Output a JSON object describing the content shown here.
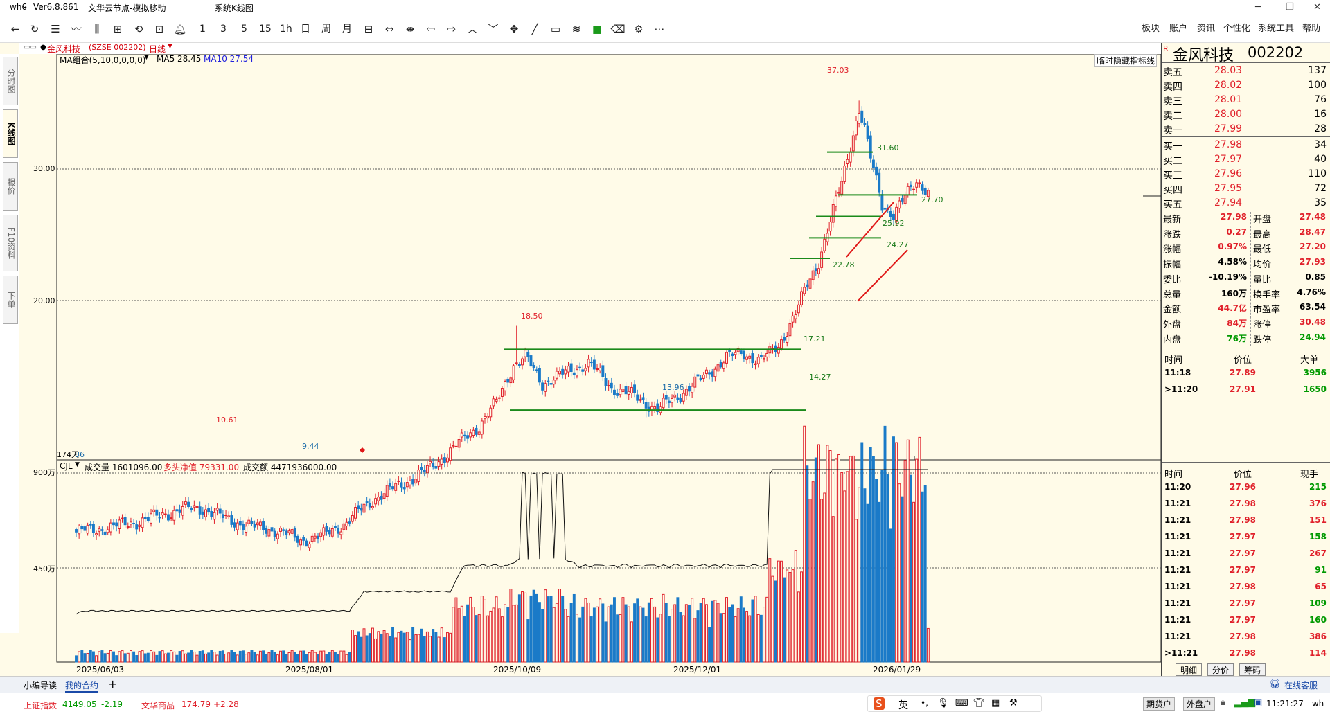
{
  "titlebar": {
    "app": "wh6",
    "version": "Ver6.8.861",
    "server": "文华云节点-模拟移动",
    "window": "系统K线图"
  },
  "toolbar": {
    "periods": [
      "1",
      "3",
      "5",
      "15",
      "1h",
      "日",
      "周",
      "月"
    ],
    "menu": [
      "板块",
      "账户",
      "资讯",
      "个性化",
      "系统工具",
      "帮助"
    ]
  },
  "subheader": {
    "symbol": "金风科技",
    "code_label": "(SZSE 002202)",
    "period": "日线"
  },
  "left_tabs": [
    "分时图",
    "K线图",
    "报价",
    "F10资料",
    "下单"
  ],
  "main_chart": {
    "indicator": "MA组合(5,10,0,0,0,0)",
    "ma5_label": "MA5 28.45",
    "ma10_label": "MA10 27.54",
    "hide_btn": "临时隐藏指标线",
    "price_labels": [
      "30.00",
      "20.00"
    ],
    "annotations": {
      "high": "37.03",
      "l3160": "31.60",
      "l2770": "27.70",
      "l2592": "25.92",
      "l2427": "24.27",
      "l2278": "22.78",
      "h1850": "18.50",
      "l1721": "17.21",
      "l1427": "14.27",
      "low1396": "13.96",
      "h1061": "10.61",
      "low944": "9.44",
      "corner": "174天",
      "corner2": "86"
    }
  },
  "volume_chart": {
    "indicator": "CJL",
    "vol_label": "成交量 1601096.00",
    "net_label": "多头净值 79331.00",
    "amount_label": "成交额 4471936000.00",
    "y_labels": [
      "900万",
      "450万"
    ]
  },
  "x_axis": [
    "2025/06/03",
    "2025/08/01",
    "2025/10/09",
    "2025/12/01",
    "2026/01/29"
  ],
  "quote": {
    "title_flag": "R",
    "name": "金风科技",
    "code": "002202",
    "asks": [
      {
        "label": "卖五",
        "price": "28.03",
        "vol": "137"
      },
      {
        "label": "卖四",
        "price": "28.02",
        "vol": "100"
      },
      {
        "label": "卖三",
        "price": "28.01",
        "vol": "76"
      },
      {
        "label": "卖二",
        "price": "28.00",
        "vol": "16"
      },
      {
        "label": "卖一",
        "price": "27.99",
        "vol": "28"
      }
    ],
    "bids": [
      {
        "label": "买一",
        "price": "27.98",
        "vol": "34"
      },
      {
        "label": "买二",
        "price": "27.97",
        "vol": "40"
      },
      {
        "label": "买三",
        "price": "27.96",
        "vol": "110"
      },
      {
        "label": "买四",
        "price": "27.95",
        "vol": "72"
      },
      {
        "label": "买五",
        "price": "27.94",
        "vol": "35"
      }
    ],
    "stats_left": [
      {
        "label": "最新",
        "value": "27.98",
        "color": "red"
      },
      {
        "label": "涨跌",
        "value": "0.27",
        "color": "red"
      },
      {
        "label": "涨幅",
        "value": "0.97%",
        "color": "red"
      },
      {
        "label": "振幅",
        "value": "4.58%",
        "color": "black"
      },
      {
        "label": "委比",
        "value": "-10.19%",
        "color": "black"
      },
      {
        "label": "总量",
        "value": "160万",
        "color": "black"
      },
      {
        "label": "金额",
        "value": "44.7亿",
        "color": "red"
      },
      {
        "label": "外盘",
        "value": "84万",
        "color": "red"
      },
      {
        "label": "内盘",
        "value": "76万",
        "color": "green"
      }
    ],
    "stats_right": [
      {
        "label": "开盘",
        "value": "27.48",
        "color": "red"
      },
      {
        "label": "最高",
        "value": "28.47",
        "color": "red"
      },
      {
        "label": "最低",
        "value": "27.20",
        "color": "red"
      },
      {
        "label": "均价",
        "value": "27.93",
        "color": "red"
      },
      {
        "label": "量比",
        "value": "0.85",
        "color": "black"
      },
      {
        "label": "换手率",
        "value": "4.76%",
        "color": "black"
      },
      {
        "label": "市盈率",
        "value": "63.54",
        "color": "black"
      },
      {
        "label": "涨停",
        "value": "30.48",
        "color": "red"
      },
      {
        "label": "跌停",
        "value": "24.94",
        "color": "green"
      }
    ],
    "big_orders_header": [
      "时间",
      "价位",
      "大单"
    ],
    "big_orders": [
      {
        "time": "11:18",
        "price": "27.89",
        "vol": "3956",
        "vcolor": "green"
      },
      {
        "time": ">11:20",
        "price": "27.91",
        "vol": "1650",
        "vcolor": "green"
      }
    ],
    "ticks_header": [
      "时间",
      "价位",
      "现手"
    ],
    "ticks": [
      {
        "time": "11:20",
        "price": "27.96",
        "vol": "215",
        "vcolor": "green"
      },
      {
        "time": "11:21",
        "price": "27.98",
        "vol": "376",
        "vcolor": "red"
      },
      {
        "time": "11:21",
        "price": "27.98",
        "vol": "151",
        "vcolor": "red"
      },
      {
        "time": "11:21",
        "price": "27.97",
        "vol": "158",
        "vcolor": "green"
      },
      {
        "time": "11:21",
        "price": "27.97",
        "vol": "267",
        "vcolor": "red"
      },
      {
        "time": "11:21",
        "price": "27.97",
        "vol": "91",
        "vcolor": "green"
      },
      {
        "time": "11:21",
        "price": "27.98",
        "vol": "65",
        "vcolor": "red"
      },
      {
        "time": "11:21",
        "price": "27.97",
        "vol": "109",
        "vcolor": "green"
      },
      {
        "time": "11:21",
        "price": "27.97",
        "vol": "160",
        "vcolor": "green"
      },
      {
        "time": "11:21",
        "price": "27.98",
        "vol": "386",
        "vcolor": "red"
      },
      {
        "time": ">11:21",
        "price": "27.98",
        "vol": "114",
        "vcolor": "red"
      }
    ],
    "panel_tabs": [
      "明细",
      "分价",
      "筹码"
    ]
  },
  "bottom_tabs": [
    "小编导读",
    "我的合约",
    "+"
  ],
  "status": {
    "index1_name": "上证指数",
    "index1_val": "4149.05",
    "index1_chg": "-2.19",
    "index2_name": "文华商品",
    "index2_val": "174.79",
    "index2_chg": "+2.28",
    "ime": "英",
    "online_service": "在线客服",
    "futures_btn": "期货户",
    "outer_btn": "外盘户",
    "clock": "11:21:27 - wh"
  },
  "chart_data": {
    "type": "candlestick",
    "title": "金风科技 (SZSE 002202) 日线",
    "x_ticks": [
      "2025/06/03",
      "2025/08/01",
      "2025/10/09",
      "2025/12/01",
      "2026/01/29"
    ],
    "y_ticks": [
      20.0,
      30.0
    ],
    "key_levels": [
      37.03,
      31.6,
      27.7,
      25.92,
      24.27,
      22.78,
      18.5,
      17.21,
      14.27,
      13.96,
      10.61,
      9.44
    ],
    "ma5": 28.45,
    "ma10": 27.54,
    "volume_y_ticks": [
      "900万",
      "450万"
    ],
    "latest_volume": 1601096.0
  }
}
